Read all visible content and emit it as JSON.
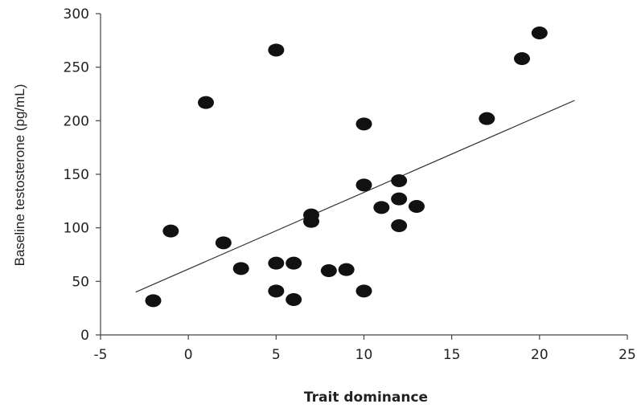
{
  "chart_data": {
    "type": "scatter",
    "xlabel": "Trait dominance",
    "ylabel": "Baseline testosterone (pg/mL)",
    "xlim": [
      -5,
      25
    ],
    "ylim": [
      0,
      300
    ],
    "x_ticks": [
      -5,
      0,
      5,
      10,
      15,
      20,
      25
    ],
    "y_ticks": [
      0,
      50,
      100,
      150,
      200,
      250,
      300
    ],
    "grid": false,
    "colors": {
      "points": "#111111",
      "trendline": "#333333",
      "axis": "#444444"
    },
    "series": [
      {
        "points": [
          {
            "x": -2,
            "y": 32
          },
          {
            "x": -1,
            "y": 97
          },
          {
            "x": 1,
            "y": 217
          },
          {
            "x": 2,
            "y": 86
          },
          {
            "x": 3,
            "y": 62
          },
          {
            "x": 5,
            "y": 266
          },
          {
            "x": 5,
            "y": 67
          },
          {
            "x": 5,
            "y": 41
          },
          {
            "x": 6,
            "y": 67
          },
          {
            "x": 6,
            "y": 33
          },
          {
            "x": 7,
            "y": 112
          },
          {
            "x": 7,
            "y": 106
          },
          {
            "x": 8,
            "y": 60
          },
          {
            "x": 9,
            "y": 61
          },
          {
            "x": 10,
            "y": 197
          },
          {
            "x": 10,
            "y": 140
          },
          {
            "x": 10,
            "y": 41
          },
          {
            "x": 11,
            "y": 119
          },
          {
            "x": 12,
            "y": 144
          },
          {
            "x": 12,
            "y": 127
          },
          {
            "x": 12,
            "y": 102
          },
          {
            "x": 13,
            "y": 120
          },
          {
            "x": 17,
            "y": 202
          },
          {
            "x": 19,
            "y": 258
          },
          {
            "x": 20,
            "y": 282
          }
        ]
      }
    ],
    "trendline": {
      "x": [
        -3,
        22
      ],
      "y": [
        40,
        219
      ]
    }
  }
}
